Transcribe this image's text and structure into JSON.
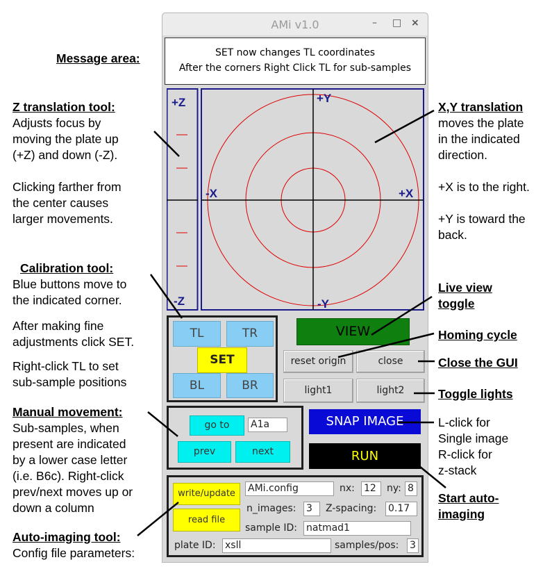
{
  "annotations": {
    "message_area": "Message area:",
    "z_title": "Z translation tool:",
    "z_text_1": "Adjusts focus by",
    "z_text_2": "moving the plate up",
    "z_text_3": "(+Z) and down (-Z).",
    "z_text_4": "Clicking farther from",
    "z_text_5": "the center causes",
    "z_text_6": "larger movements.",
    "calib_title": "Calibration tool:",
    "calib_text_1": "Blue buttons move to",
    "calib_text_2": "the indicated corner.",
    "calib_text_3": "After making fine",
    "calib_text_4": "adjustments click SET.",
    "calib_text_5": "Right-click TL to set",
    "calib_text_6": "sub-sample positions",
    "manual_title": "Manual movement:",
    "manual_text_1": "Sub-samples, when",
    "manual_text_2": "present are indicated",
    "manual_text_3": "by a lower case letter",
    "manual_text_4": "(i.e. B6c).  Right-click",
    "manual_text_5": "prev/next moves up or",
    "manual_text_6": "down a column",
    "auto_title": "Auto-imaging tool:",
    "auto_text_1": "Config file parameters:",
    "xy_title": "X,Y translation",
    "xy_text_1": "moves the plate",
    "xy_text_2": "in the indicated",
    "xy_text_3": "direction.",
    "xy_text_4": "+X is to the right.",
    "xy_text_5": "+Y is toward the",
    "xy_text_6": "back.",
    "live_title_1": "Live view",
    "live_title_2": "toggle",
    "homing_title": "Homing cycle",
    "close_title": "Close the GUI",
    "lights_title": "Toggle lights",
    "snap_text_1": "L-click for",
    "snap_text_2": "Single image",
    "snap_text_3": "R-click for",
    "snap_text_4": "z-stack",
    "start_title_1": "Start auto-",
    "start_title_2": "imaging"
  },
  "window": {
    "title": "AMi v1.0",
    "minimize": "–",
    "maximize": "□",
    "close": "×"
  },
  "message": {
    "line1": "SET now changes TL coordinates",
    "line2": "After the corners Right Click TL for sub-samples"
  },
  "z_tool": {
    "plus": "+Z",
    "minus": "-Z"
  },
  "xy_tool": {
    "plus_y": "+Y",
    "minus_y": "-Y",
    "plus_x": "+X",
    "minus_x": "-X"
  },
  "calibration": {
    "tl": "TL",
    "tr": "TR",
    "set": "SET",
    "bl": "BL",
    "br": "BR"
  },
  "buttons": {
    "view": "VIEW",
    "reset_origin": "reset origin",
    "close": "close",
    "light1": "light1",
    "light2": "light2",
    "snap": "SNAP IMAGE",
    "run": "RUN"
  },
  "manual": {
    "goto": "go to",
    "position": "A1a",
    "prev": "prev",
    "next": "next"
  },
  "auto": {
    "write_update": "write/update",
    "read_file": "read file",
    "config_file": "AMi.config",
    "nx_label": "nx:",
    "nx": "12",
    "ny_label": "ny:",
    "ny": "8",
    "n_images_label": "n_images:",
    "n_images": "3",
    "z_spacing_label": "Z-spacing:",
    "z_spacing": "0.17",
    "sample_id_label": "sample ID:",
    "sample_id": "natmad1",
    "plate_id_label": "plate ID:",
    "plate_id": "xsll",
    "samples_pos_label": "samples/pos:",
    "samples_pos": "3"
  },
  "colors": {
    "view_green": "#0f7f0f",
    "snap_blue": "#0a0ad6",
    "run_black": "#000000",
    "run_text": "#ffff00",
    "calib_blue": "#87cdf4",
    "manual_cyan": "#00f0f0",
    "set_yellow": "#ffff00",
    "frame_navy": "#1a1a8c",
    "circle_red": "#e00000"
  }
}
